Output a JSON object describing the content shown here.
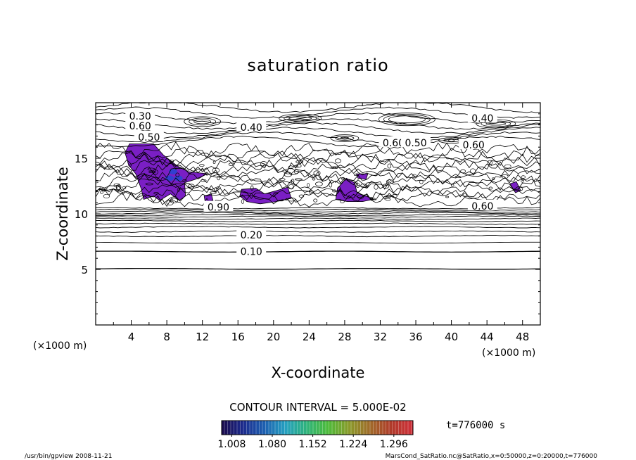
{
  "chart_data": {
    "type": "contour",
    "title": "saturation ratio",
    "xlabel": "X-coordinate",
    "ylabel": "Z-coordinate",
    "x_unit_left": "(×1000 m)",
    "x_unit_right": "(×1000 m)",
    "xlim": [
      0,
      50
    ],
    "ylim": [
      0,
      20
    ],
    "x_ticks": [
      4,
      8,
      12,
      16,
      20,
      24,
      28,
      32,
      36,
      40,
      44,
      48
    ],
    "y_ticks": [
      5,
      10,
      15
    ],
    "contour_interval_text": "CONTOUR INTERVAL = 5.000E-02",
    "time_text": "t=776000 s",
    "colorbar": {
      "tick_labels": [
        "1.008",
        "1.080",
        "1.152",
        "1.224",
        "1.296"
      ],
      "range": [
        0.99,
        1.33
      ],
      "colors": [
        "#1a0a4a",
        "#1c2a8c",
        "#1d5fb0",
        "#25a0c0",
        "#2fb37a",
        "#4dba3a",
        "#8a9a2a",
        "#a06a2a",
        "#b03a2a",
        "#d0303a"
      ]
    },
    "contour_labels": [
      {
        "text": "0.30",
        "x": 5,
        "z": 18.8
      },
      {
        "text": "0.50",
        "x": 6,
        "z": 16.9
      },
      {
        "text": "0.60",
        "x": 5,
        "z": 17.9
      },
      {
        "text": "0.40",
        "x": 17.5,
        "z": 17.8
      },
      {
        "text": "0.40",
        "x": 43.5,
        "z": 18.6
      },
      {
        "text": "0.60",
        "x": 33.5,
        "z": 16.4
      },
      {
        "text": "0.50",
        "x": 36,
        "z": 16.4
      },
      {
        "text": "0.60",
        "x": 42.5,
        "z": 16.2
      },
      {
        "text": "0.60",
        "x": 43.5,
        "z": 10.7
      },
      {
        "text": "0.90",
        "x": 13.8,
        "z": 10.6
      },
      {
        "text": "0.20",
        "x": 17.5,
        "z": 8.1
      },
      {
        "text": "0.10",
        "x": 17.5,
        "z": 6.6
      }
    ],
    "supersaturated_regions": [
      {
        "name": "left-cloud",
        "points": [
          [
            3.8,
            16.3
          ],
          [
            6.5,
            16.3
          ],
          [
            7.6,
            15.3
          ],
          [
            9.2,
            14.3
          ],
          [
            10.4,
            13.8
          ],
          [
            12.6,
            13.6
          ],
          [
            11.2,
            13.1
          ],
          [
            10,
            12.8
          ],
          [
            10.1,
            11.6
          ],
          [
            9.4,
            11.2
          ],
          [
            8.4,
            11.8
          ],
          [
            7.2,
            11.2
          ],
          [
            6.5,
            11.6
          ],
          [
            5.4,
            11.3
          ],
          [
            5.1,
            12.3
          ],
          [
            4.5,
            13.6
          ],
          [
            3.7,
            14.4
          ],
          [
            3.3,
            15.5
          ]
        ]
      },
      {
        "name": "mid-cloud",
        "points": [
          [
            16.4,
            12.2
          ],
          [
            18,
            12.3
          ],
          [
            19,
            11.8
          ],
          [
            20.4,
            12.1
          ],
          [
            21.6,
            12.4
          ],
          [
            22,
            11.4
          ],
          [
            20.3,
            11.1
          ],
          [
            18.5,
            10.9
          ],
          [
            17,
            11.1
          ],
          [
            16.2,
            11.6
          ]
        ]
      },
      {
        "name": "right-cloud",
        "points": [
          [
            27.2,
            12.3
          ],
          [
            28.2,
            13.2
          ],
          [
            29.1,
            12.8
          ],
          [
            29.4,
            11.9
          ],
          [
            30.4,
            11.6
          ],
          [
            31.2,
            11.3
          ],
          [
            30,
            11.1
          ],
          [
            28.3,
            11.1
          ],
          [
            27,
            11.3
          ]
        ]
      },
      {
        "name": "small-cloud-1",
        "points": [
          [
            12.2,
            11.6
          ],
          [
            13,
            11.8
          ],
          [
            13.2,
            11.2
          ],
          [
            12.3,
            11.1
          ]
        ]
      },
      {
        "name": "small-cloud-2",
        "points": [
          [
            46.6,
            12.7
          ],
          [
            47.3,
            12.9
          ],
          [
            47.8,
            12.1
          ],
          [
            47.2,
            11.9
          ]
        ]
      },
      {
        "name": "small-cloud-3",
        "points": [
          [
            29.3,
            13.6
          ],
          [
            30.6,
            13.6
          ],
          [
            30.4,
            13.1
          ],
          [
            29.5,
            13.2
          ]
        ]
      }
    ]
  },
  "footer": {
    "left": "/usr/bin/gpview   2008-11-21",
    "right": "MarsCond_SatRatio.nc@SatRatio,x=0:50000,z=0:20000,t=776000"
  }
}
